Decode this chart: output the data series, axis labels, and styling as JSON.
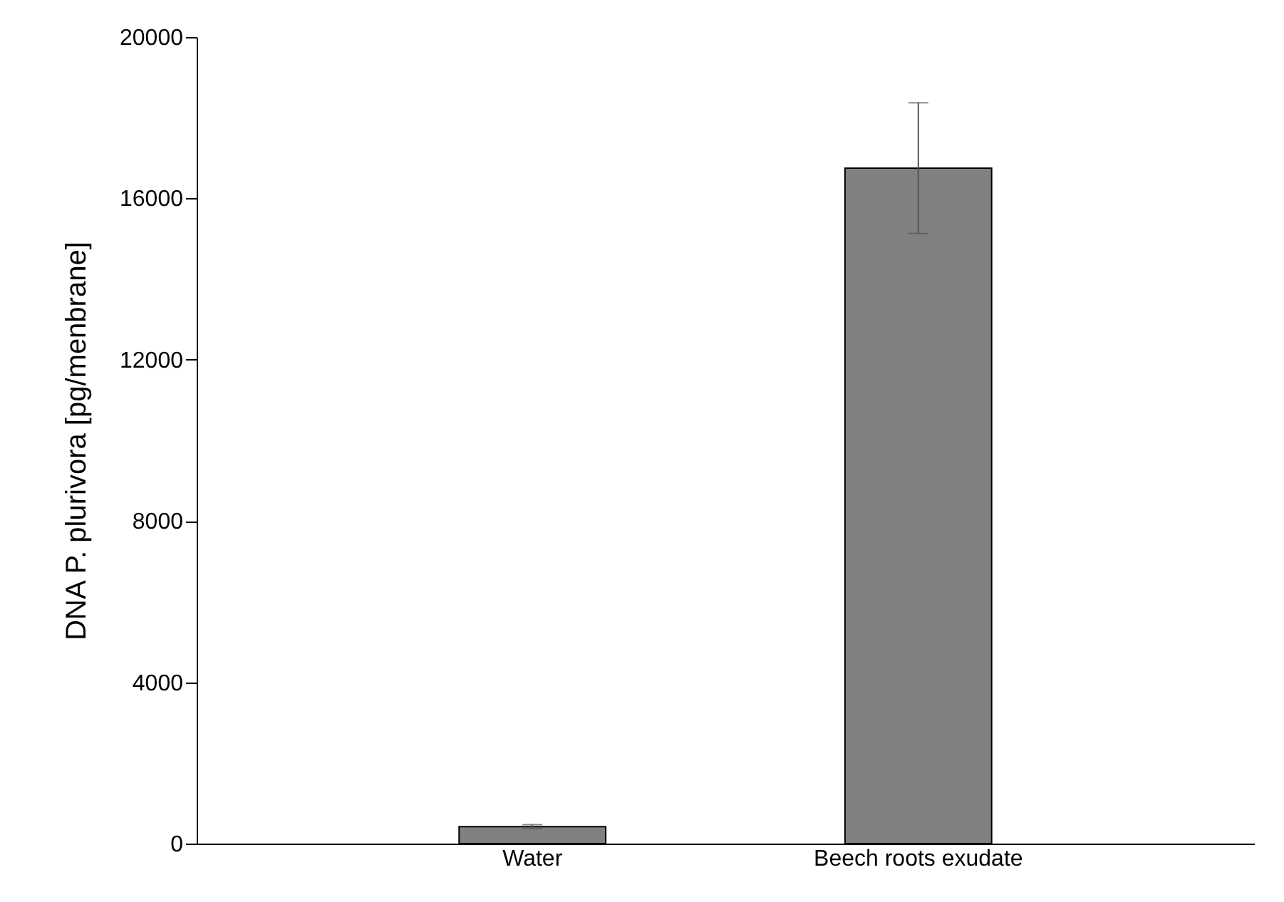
{
  "chart_data": {
    "type": "bar",
    "ylabel": "DNA P. plurivora [pg/menbrane]",
    "categories": [
      "Water",
      "Beech roots exudate"
    ],
    "values": [
      420,
      16750
    ],
    "errors": [
      50,
      1620
    ],
    "color": "#808080",
    "ylim": [
      0,
      20000
    ],
    "yticks": [
      0,
      4000,
      8000,
      12000,
      16000,
      20000
    ],
    "grid": false
  }
}
